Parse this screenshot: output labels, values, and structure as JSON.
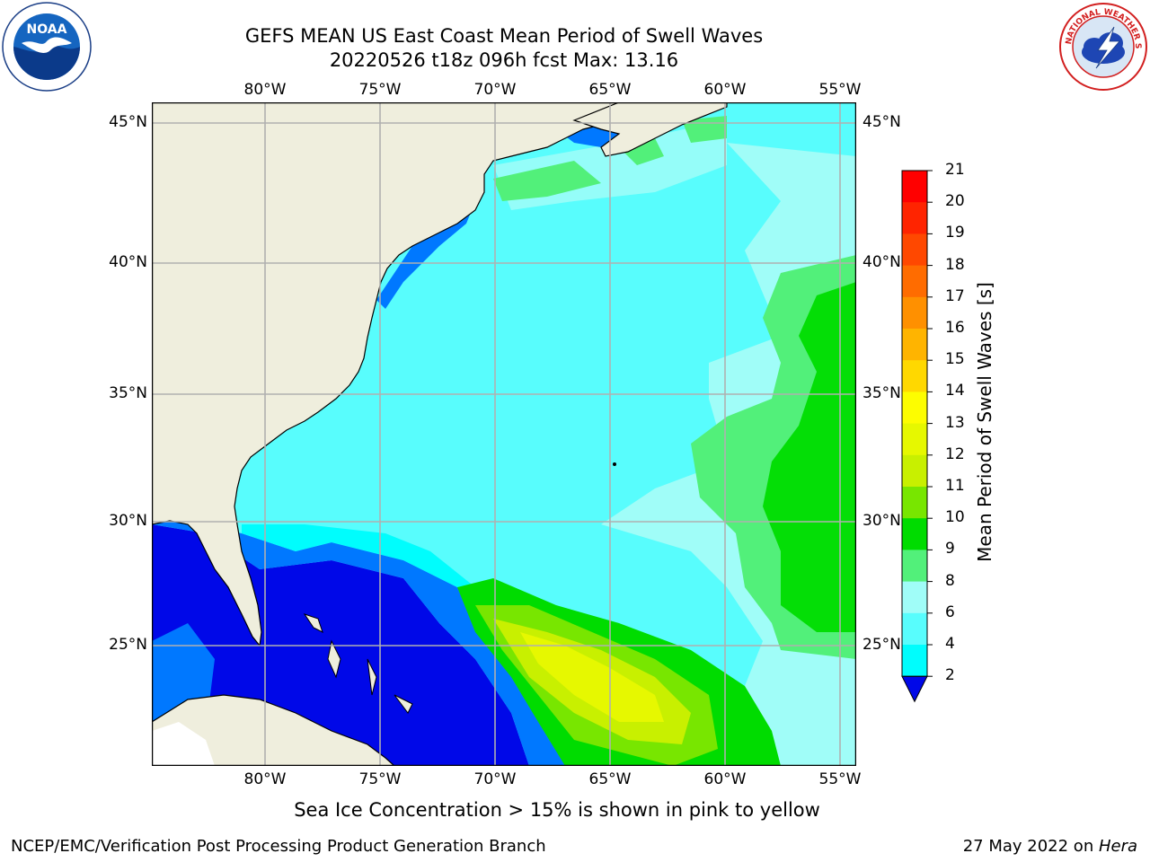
{
  "title": {
    "line1": "GEFS MEAN US East Coast Mean Period of Swell Waves",
    "line2": "20220526 t18z 096h fcst   Max: 13.16"
  },
  "logos": {
    "left": {
      "text": "NOAA",
      "ring_text": "NATIONAL OCEANIC AND ATMOSPHERIC ADMINISTRATION · U.S. DEPARTMENT OF COMMERCE"
    },
    "right": {
      "ring_text": "NATIONAL WEATHER SERVICE"
    }
  },
  "map": {
    "lon_labels": [
      "80°W",
      "75°W",
      "70°W",
      "65°W",
      "60°W",
      "55°W"
    ],
    "lat_labels": [
      "45°N",
      "40°N",
      "35°N",
      "30°N",
      "25°N"
    ],
    "land_color": "#efeedd",
    "grid_color": "#b0b0b0"
  },
  "colorbar": {
    "title": "Mean Period of Swell Waves [s]",
    "ticks": [
      "21",
      "20",
      "19",
      "18",
      "17",
      "16",
      "15",
      "14",
      "13",
      "12",
      "11",
      "10",
      "9",
      "8",
      "6",
      "4",
      "2"
    ],
    "colors": [
      "#ff0000",
      "#ff2400",
      "#ff4800",
      "#ff6c00",
      "#ff9000",
      "#ffb400",
      "#ffd800",
      "#fdfd00",
      "#e6f800",
      "#c8f000",
      "#78e600",
      "#00dc00",
      "#52f07a",
      "#a0fdf8",
      "#58fdfd",
      "#00fdfd",
      "#0078ff"
    ],
    "under_color": "#0008e8"
  },
  "note": "Sea Ice Concentration > 15% is shown in pink to yellow",
  "credit_left": "NCEP/EMC/Verification Post Processing Product Generation Branch",
  "credit_right_date": "27 May 2022 on ",
  "credit_right_host": "Hera"
}
